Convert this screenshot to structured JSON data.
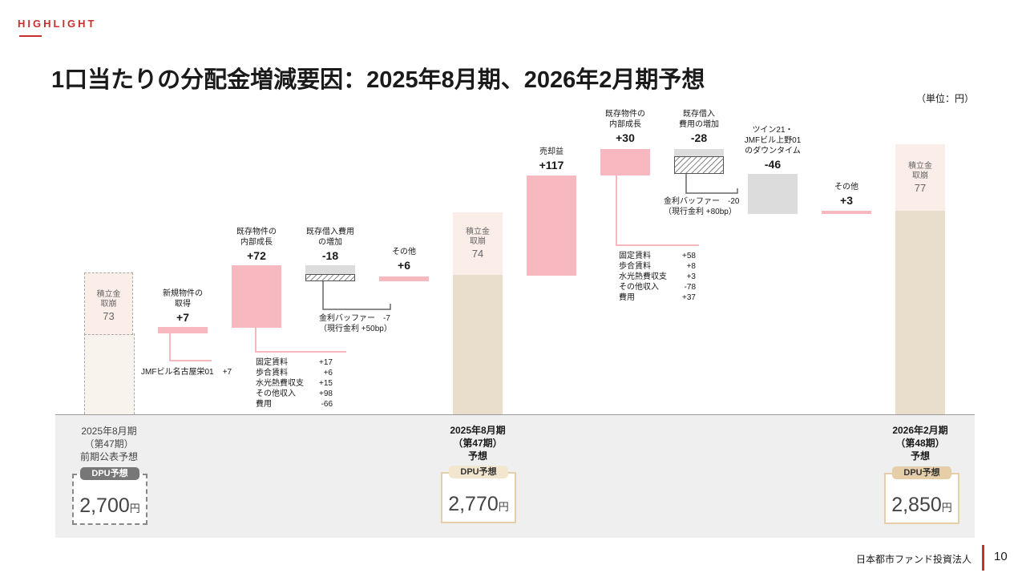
{
  "header": {
    "highlight": "HIGHLIGHT",
    "title": "1口当たりの分配金増減要因：2025年8月期、2026年2月期予想",
    "unit": "（単位：円）"
  },
  "chart_data": {
    "type": "bar",
    "title": "1口当たりの分配金増減要因：2025年8月期、2026年2月期予想",
    "unit": "円",
    "totals": [
      {
        "period": "2025年8月期（第47期）前期公表予想",
        "dpu": 2700,
        "reserve_drawdown": 73
      },
      {
        "period": "2025年8月期（第47期）予想",
        "dpu": 2770,
        "reserve_drawdown": 74
      },
      {
        "period": "2026年2月期（第48期）予想",
        "dpu": 2850,
        "reserve_drawdown": 77
      }
    ],
    "steps": [
      {
        "label": "新規物件の取得",
        "value": 7
      },
      {
        "label": "既存物件の内部成長",
        "value": 72
      },
      {
        "label": "既存借入費用の増加",
        "value": -18
      },
      {
        "label": "その他",
        "value": 6
      },
      {
        "label": "売却益",
        "value": 117
      },
      {
        "label": "既存物件の内部成長",
        "value": 30
      },
      {
        "label": "既存借入費用の増加",
        "value": -28
      },
      {
        "label": "ツイン21・JMFビル上野01のダウンタイム",
        "value": -46
      },
      {
        "label": "その他",
        "value": 3
      }
    ]
  },
  "labels": {
    "reserve1": "積立金",
    "reserve2": "取崩",
    "r73": "73",
    "r74": "74",
    "r77": "77",
    "s1a": "新規物件の",
    "s1b": "取得",
    "s1v": "+7",
    "s2a": "既存物件の",
    "s2b": "内部成長",
    "s2v": "+72",
    "s3a": "既存借入費用",
    "s3b": "の増加",
    "s3v": "-18",
    "s4a": "その他",
    "s4v": "+6",
    "s5a": "売却益",
    "s5v": "+117",
    "s6a": "既存物件の",
    "s6b": "内部成長",
    "s6v": "+30",
    "s7a": "既存借入",
    "s7b": "費用の増加",
    "s7v": "-28",
    "s8a": "ツイン21・",
    "s8b": "JMFビル上野01",
    "s8c": "のダウンタイム",
    "s8v": "-46",
    "s9a": "その他",
    "s9v": "+3"
  },
  "details": {
    "jmf": {
      "name": "JMFビル名古屋栄01",
      "value": "+7"
    },
    "d1": [
      {
        "k": "固定賃料",
        "n": "+17"
      },
      {
        "k": "歩合賃料",
        "n": "+6"
      },
      {
        "k": "水光熱費収支",
        "n": "+15"
      },
      {
        "k": "その他収入",
        "n": "+98"
      },
      {
        "k": "費用",
        "n": "-66"
      }
    ],
    "d2": [
      {
        "k": "固定賃料",
        "n": "+58"
      },
      {
        "k": "歩合賃料",
        "n": "+8"
      },
      {
        "k": "水光熱費収支",
        "n": "+3"
      },
      {
        "k": "その他収入",
        "n": "-78"
      },
      {
        "k": "費用",
        "n": "+37"
      }
    ],
    "buf1a": "金利バッファー　-7",
    "buf1b": "（現行金利 +50bp）",
    "buf2a": "金利バッファー　-20",
    "buf2b": "（現行金利 +80bp）"
  },
  "periods": {
    "p1a": "2025年8月期",
    "p1b": "（第47期）",
    "p1c": "前期公表予想",
    "p2a": "2025年8月期",
    "p2b": "（第47期）",
    "p2c": "予想",
    "p3a": "2026年2月期",
    "p3b": "（第48期）",
    "p3c": "予想"
  },
  "dpu": {
    "tag": "DPU予想",
    "v1": "2,700",
    "v2": "2,770",
    "v3": "2,850",
    "yen": "円"
  },
  "footer": {
    "company": "日本都市ファンド投資法人",
    "page": "10"
  },
  "colors": {
    "accent": "#c8302f",
    "pink": "#f7b8c0",
    "beige": "#e9ddcc",
    "reserve": "#fbeee8",
    "gray": "#dcdcdc"
  }
}
